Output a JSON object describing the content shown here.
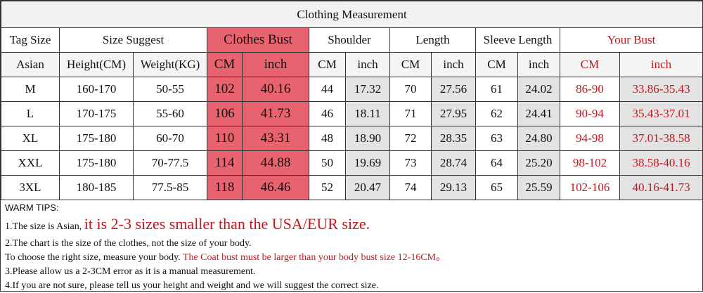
{
  "title": "Clothing Measurement",
  "headers": {
    "top": [
      "Tag Size",
      "Size Suggest",
      "Clothes Bust",
      "Shoulder",
      "Length",
      "Sleeve Length",
      "Your Bust"
    ],
    "sub": [
      "Asian",
      "Height(CM)",
      "Weight(KG)",
      "CM",
      "inch",
      "CM",
      "inch",
      "CM",
      "inch",
      "CM",
      "inch",
      "CM",
      "inch"
    ]
  },
  "rows": [
    [
      "M",
      "160-170",
      "50-55",
      "102",
      "40.16",
      "44",
      "17.32",
      "70",
      "27.56",
      "61",
      "24.02",
      "86-90",
      "33.86-35.43"
    ],
    [
      "L",
      "170-175",
      "55-60",
      "106",
      "41.73",
      "46",
      "18.11",
      "71",
      "27.95",
      "62",
      "24.41",
      "90-94",
      "35.43-37.01"
    ],
    [
      "XL",
      "175-180",
      "60-70",
      "110",
      "43.31",
      "48",
      "18.90",
      "72",
      "28.35",
      "63",
      "24.80",
      "94-98",
      "37.01-38.58"
    ],
    [
      "XXL",
      "175-180",
      "70-77.5",
      "114",
      "44.88",
      "50",
      "19.69",
      "73",
      "28.74",
      "64",
      "25.20",
      "98-102",
      "38.58-40.16"
    ],
    [
      "3XL",
      "180-185",
      "77.5-85",
      "118",
      "46.46",
      "52",
      "20.47",
      "74",
      "29.13",
      "65",
      "25.59",
      "102-106",
      "40.16-41.73"
    ]
  ],
  "tips": {
    "heading": "WARM TIPS:",
    "line1": [
      "1.The size is Asian,",
      "it is 2-3 sizes smaller than the USA/EUR size."
    ],
    "line2": "2.The chart is the size of the clothes, not the size of your body.",
    "line3": [
      "To choose the right size, measure your body.",
      "The Coat bust must be larger than your body bust size 12-16CM。"
    ],
    "line4": "3.Please allow us a 2-3CM error as it is a manual measurement.",
    "line5": "4.If you are not sure, please tell us your height and weight and we will suggest the correct size."
  }
}
